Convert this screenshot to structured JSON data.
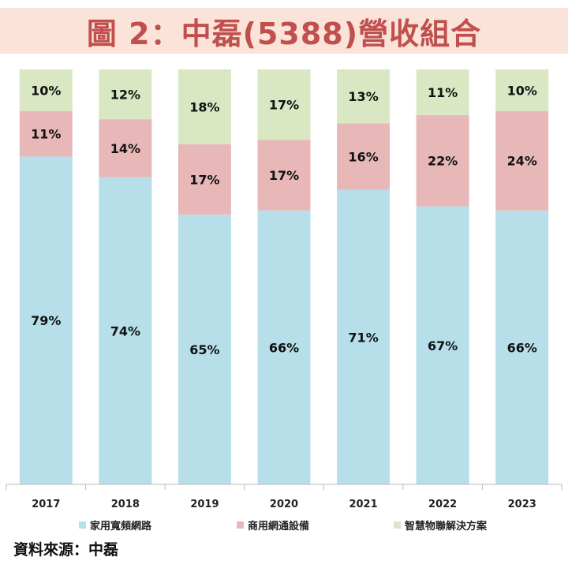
{
  "chart_data": {
    "type": "bar",
    "stacked": true,
    "title": "圖 2：中磊(5388)營收組合",
    "categories": [
      "2017",
      "2018",
      "2019",
      "2020",
      "2021",
      "2022",
      "2023"
    ],
    "series": [
      {
        "name": "家用寬頻網路",
        "color": "#b7dfea",
        "values": [
          79,
          74,
          65,
          66,
          71,
          67,
          66
        ]
      },
      {
        "name": "商用網通設備",
        "color": "#e8b8b9",
        "values": [
          11,
          14,
          17,
          17,
          16,
          22,
          24
        ]
      },
      {
        "name": "智慧物聯解決方案",
        "color": "#d9e7c2",
        "values": [
          10,
          12,
          18,
          17,
          13,
          11,
          10
        ]
      }
    ],
    "ylim": [
      0,
      100
    ],
    "value_suffix": "%",
    "legend_position": "bottom",
    "grid": false
  },
  "source": "資料來源：中磊"
}
